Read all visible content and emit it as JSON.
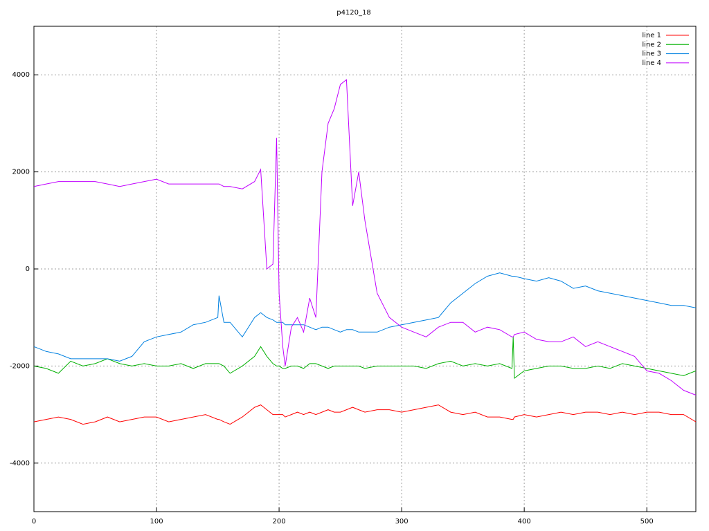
{
  "chart_data": {
    "type": "line",
    "title": "p4120_18",
    "x": [
      0,
      10,
      20,
      30,
      40,
      50,
      60,
      70,
      80,
      90,
      100,
      110,
      120,
      130,
      140,
      150,
      151,
      155,
      160,
      170,
      180,
      185,
      190,
      195,
      198,
      200,
      203,
      205,
      210,
      215,
      220,
      225,
      230,
      235,
      240,
      245,
      250,
      255,
      260,
      265,
      270,
      280,
      290,
      300,
      310,
      320,
      330,
      340,
      350,
      360,
      370,
      380,
      390,
      391,
      392,
      400,
      410,
      420,
      430,
      440,
      450,
      460,
      470,
      480,
      490,
      500,
      510,
      520,
      530,
      540
    ],
    "series": [
      {
        "name": "line 1",
        "color": "#ff0000",
        "values": [
          -3150,
          -3100,
          -3050,
          -3100,
          -3200,
          -3150,
          -3050,
          -3150,
          -3100,
          -3050,
          -3050,
          -3150,
          -3100,
          -3050,
          -3000,
          -3100,
          -3100,
          -3150,
          -3200,
          -3050,
          -2850,
          -2800,
          -2900,
          -3000,
          -3000,
          -3000,
          -3000,
          -3050,
          -3000,
          -2950,
          -3000,
          -2950,
          -3000,
          -2950,
          -2900,
          -2950,
          -2950,
          -2900,
          -2850,
          -2900,
          -2950,
          -2900,
          -2900,
          -2950,
          -2900,
          -2850,
          -2800,
          -2950,
          -3000,
          -2950,
          -3050,
          -3050,
          -3100,
          -3100,
          -3050,
          -3000,
          -3050,
          -3000,
          -2950,
          -3000,
          -2950,
          -2950,
          -3000,
          -2950,
          -3000,
          -2950,
          -2950,
          -3000,
          -3000,
          -3150
        ]
      },
      {
        "name": "line 2",
        "color": "#00b000",
        "values": [
          -2000,
          -2050,
          -2150,
          -1900,
          -2000,
          -1950,
          -1850,
          -1950,
          -2000,
          -1950,
          -2000,
          -2000,
          -1950,
          -2050,
          -1950,
          -1950,
          -1950,
          -2000,
          -2150,
          -2000,
          -1800,
          -1600,
          -1800,
          -1950,
          -2000,
          -2000,
          -2050,
          -2050,
          -2000,
          -2000,
          -2050,
          -1950,
          -1950,
          -2000,
          -2050,
          -2000,
          -2000,
          -2000,
          -2000,
          -2000,
          -2050,
          -2000,
          -2000,
          -2000,
          -2000,
          -2050,
          -1950,
          -1900,
          -2000,
          -1950,
          -2000,
          -1950,
          -2050,
          -1400,
          -2250,
          -2100,
          -2050,
          -2000,
          -2000,
          -2050,
          -2050,
          -2000,
          -2050,
          -1950,
          -2000,
          -2050,
          -2100,
          -2150,
          -2200,
          -2100
        ]
      },
      {
        "name": "line 3",
        "color": "#0080e0",
        "values": [
          -1600,
          -1700,
          -1750,
          -1850,
          -1850,
          -1850,
          -1850,
          -1900,
          -1800,
          -1500,
          -1400,
          -1350,
          -1300,
          -1150,
          -1100,
          -1000,
          -550,
          -1100,
          -1100,
          -1400,
          -1000,
          -900,
          -1000,
          -1050,
          -1100,
          -1100,
          -1100,
          -1150,
          -1150,
          -1150,
          -1150,
          -1200,
          -1250,
          -1200,
          -1200,
          -1250,
          -1300,
          -1250,
          -1250,
          -1300,
          -1300,
          -1300,
          -1200,
          -1150,
          -1100,
          -1050,
          -1000,
          -700,
          -500,
          -300,
          -150,
          -80,
          -150,
          -150,
          -150,
          -200,
          -250,
          -180,
          -250,
          -400,
          -350,
          -450,
          -500,
          -550,
          -600,
          -650,
          -700,
          -750,
          -750,
          -800
        ]
      },
      {
        "name": "line 4",
        "color": "#c000ff",
        "values": [
          1700,
          1750,
          1800,
          1800,
          1800,
          1800,
          1750,
          1700,
          1750,
          1800,
          1850,
          1750,
          1750,
          1750,
          1750,
          1750,
          1750,
          1700,
          1700,
          1650,
          1800,
          2050,
          0,
          100,
          2700,
          -500,
          -1600,
          -2000,
          -1200,
          -1000,
          -1300,
          -600,
          -1000,
          2000,
          3000,
          3300,
          3800,
          3900,
          1300,
          2000,
          1000,
          -500,
          -1000,
          -1200,
          -1300,
          -1400,
          -1200,
          -1100,
          -1100,
          -1300,
          -1200,
          -1250,
          -1400,
          -1400,
          -1350,
          -1300,
          -1450,
          -1500,
          -1500,
          -1400,
          -1600,
          -1500,
          -1600,
          -1700,
          -1800,
          -2100,
          -2150,
          -2300,
          -2500,
          -2600
        ]
      }
    ],
    "xlim": [
      0,
      540
    ],
    "ylim": [
      -5000,
      5000
    ],
    "xticks": [
      0,
      100,
      200,
      300,
      400,
      500
    ],
    "yticks": [
      -4000,
      -2000,
      0,
      2000,
      4000
    ],
    "grid": true,
    "legend": "top-right"
  }
}
